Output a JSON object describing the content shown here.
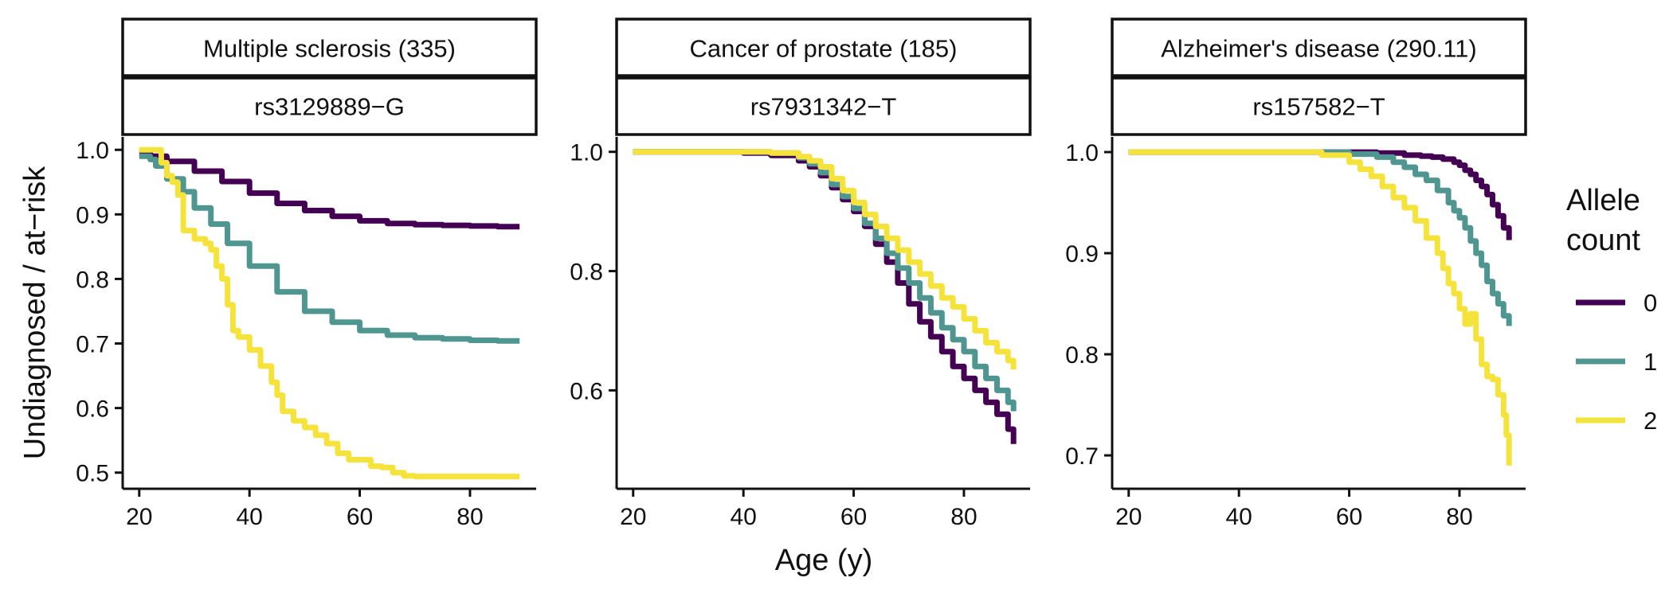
{
  "figure": {
    "ylabel": "Undiagnosed / at−risk",
    "xlabel": "Age (y)",
    "legend": {
      "title_lines": [
        "Allele",
        "count"
      ],
      "position": "right",
      "entries": [
        {
          "label": "0",
          "color": "#440154"
        },
        {
          "label": "1",
          "color": "#4F9690"
        },
        {
          "label": "2",
          "color": "#F5E33C"
        }
      ]
    }
  },
  "chart_data": [
    {
      "type": "line",
      "title": "Multiple sclerosis (335)",
      "subtitle": "rs3129889−G",
      "xlim": [
        17,
        92
      ],
      "ylim": [
        0.475,
        1.02
      ],
      "x_ticks": [
        20,
        40,
        60,
        80
      ],
      "y_ticks": [
        0.5,
        0.6,
        0.7,
        0.8,
        0.9,
        1.0
      ],
      "y_tick_labels": [
        "0.5",
        "0.6",
        "0.7",
        "0.8",
        "0.9",
        "1.0"
      ],
      "series": [
        {
          "name": "0",
          "x": [
            20,
            22,
            25,
            30,
            35,
            40,
            45,
            50,
            55,
            60,
            65,
            70,
            75,
            80,
            85,
            89
          ],
          "y": [
            0.995,
            0.99,
            0.982,
            0.967,
            0.951,
            0.933,
            0.917,
            0.906,
            0.897,
            0.89,
            0.886,
            0.884,
            0.883,
            0.882,
            0.881,
            0.881
          ]
        },
        {
          "name": "1",
          "x": [
            20,
            22,
            23,
            25,
            28,
            30,
            33,
            36,
            40,
            45,
            50,
            55,
            60,
            65,
            70,
            75,
            80,
            85,
            89
          ],
          "y": [
            0.99,
            0.985,
            0.975,
            0.955,
            0.935,
            0.91,
            0.885,
            0.855,
            0.82,
            0.78,
            0.75,
            0.733,
            0.72,
            0.713,
            0.709,
            0.707,
            0.705,
            0.704,
            0.704
          ]
        },
        {
          "name": "2",
          "x": [
            20,
            23,
            24,
            25,
            26,
            27,
            28,
            30,
            32,
            33,
            34,
            35,
            36,
            37,
            38,
            40,
            42,
            44,
            45,
            46,
            48,
            50,
            52,
            54,
            56,
            58,
            60,
            62,
            64,
            66,
            68,
            70,
            75,
            80,
            85,
            89
          ],
          "y": [
            1.0,
            1.0,
            0.98,
            0.96,
            0.95,
            0.93,
            0.875,
            0.862,
            0.855,
            0.845,
            0.82,
            0.8,
            0.76,
            0.72,
            0.71,
            0.69,
            0.665,
            0.64,
            0.62,
            0.595,
            0.58,
            0.57,
            0.558,
            0.545,
            0.53,
            0.52,
            0.52,
            0.51,
            0.508,
            0.5,
            0.495,
            0.494,
            0.494,
            0.494,
            0.494,
            0.494
          ]
        }
      ]
    },
    {
      "type": "line",
      "title": "Cancer of prostate (185)",
      "subtitle": "rs7931342−T",
      "xlim": [
        17,
        92
      ],
      "ylim": [
        0.435,
        1.025
      ],
      "x_ticks": [
        20,
        40,
        60,
        80
      ],
      "y_ticks": [
        0.6,
        0.8,
        1.0
      ],
      "y_tick_labels": [
        "0.6",
        "0.8",
        "1.0"
      ],
      "series": [
        {
          "name": "0",
          "x": [
            20,
            40,
            45,
            50,
            52,
            54,
            56,
            58,
            60,
            62,
            64,
            66,
            68,
            70,
            72,
            74,
            76,
            78,
            80,
            82,
            84,
            86,
            88,
            89
          ],
          "y": [
            1.0,
            0.998,
            0.994,
            0.985,
            0.975,
            0.96,
            0.94,
            0.92,
            0.9,
            0.875,
            0.845,
            0.815,
            0.78,
            0.745,
            0.715,
            0.69,
            0.665,
            0.64,
            0.62,
            0.6,
            0.58,
            0.56,
            0.535,
            0.51
          ]
        },
        {
          "name": "1",
          "x": [
            20,
            45,
            50,
            52,
            54,
            56,
            58,
            60,
            62,
            64,
            66,
            68,
            70,
            72,
            74,
            76,
            78,
            80,
            82,
            84,
            86,
            88,
            89
          ],
          "y": [
            1.0,
            0.998,
            0.99,
            0.98,
            0.965,
            0.945,
            0.925,
            0.905,
            0.88,
            0.855,
            0.83,
            0.805,
            0.78,
            0.755,
            0.73,
            0.705,
            0.685,
            0.665,
            0.64,
            0.62,
            0.6,
            0.58,
            0.565
          ]
        },
        {
          "name": "2",
          "x": [
            20,
            45,
            50,
            52,
            54,
            56,
            58,
            60,
            62,
            64,
            66,
            68,
            70,
            72,
            74,
            76,
            78,
            80,
            82,
            84,
            86,
            88,
            89
          ],
          "y": [
            1.0,
            0.998,
            0.992,
            0.985,
            0.975,
            0.955,
            0.935,
            0.915,
            0.895,
            0.875,
            0.855,
            0.835,
            0.815,
            0.795,
            0.775,
            0.755,
            0.74,
            0.72,
            0.7,
            0.68,
            0.665,
            0.65,
            0.635
          ]
        }
      ]
    },
    {
      "type": "line",
      "title": "Alzheimer's disease (290.11)",
      "subtitle": "rs157582−T",
      "xlim": [
        17,
        92
      ],
      "ylim": [
        0.667,
        1.015
      ],
      "x_ticks": [
        20,
        40,
        60,
        80
      ],
      "y_ticks": [
        0.7,
        0.8,
        0.9,
        1.0
      ],
      "y_tick_labels": [
        "0.7",
        "0.8",
        "0.9",
        "1.0"
      ],
      "series": [
        {
          "name": "0",
          "x": [
            20,
            60,
            65,
            70,
            73,
            75,
            77,
            79,
            80,
            81,
            82,
            83,
            84,
            85,
            86,
            87,
            88,
            89
          ],
          "y": [
            1.0,
            1.0,
            0.999,
            0.997,
            0.996,
            0.995,
            0.993,
            0.99,
            0.987,
            0.982,
            0.978,
            0.972,
            0.966,
            0.958,
            0.948,
            0.937,
            0.925,
            0.913
          ]
        },
        {
          "name": "1",
          "x": [
            20,
            55,
            60,
            65,
            68,
            70,
            72,
            74,
            76,
            78,
            79,
            80,
            81,
            82,
            83,
            84,
            85,
            86,
            87,
            88,
            89
          ],
          "y": [
            1.0,
            1.0,
            0.998,
            0.995,
            0.99,
            0.985,
            0.978,
            0.972,
            0.962,
            0.95,
            0.942,
            0.935,
            0.925,
            0.912,
            0.9,
            0.888,
            0.872,
            0.86,
            0.85,
            0.838,
            0.828
          ]
        },
        {
          "name": "2",
          "x": [
            20,
            50,
            55,
            60,
            62,
            64,
            66,
            68,
            70,
            72,
            74,
            76,
            77,
            78,
            79,
            80,
            81,
            82,
            83,
            84,
            85,
            86,
            87,
            88,
            88.5,
            89
          ],
          "y": [
            1.0,
            1.0,
            0.997,
            0.99,
            0.983,
            0.976,
            0.966,
            0.955,
            0.945,
            0.932,
            0.915,
            0.9,
            0.885,
            0.87,
            0.86,
            0.845,
            0.83,
            0.84,
            0.815,
            0.79,
            0.778,
            0.775,
            0.76,
            0.74,
            0.72,
            0.69
          ]
        }
      ]
    }
  ]
}
